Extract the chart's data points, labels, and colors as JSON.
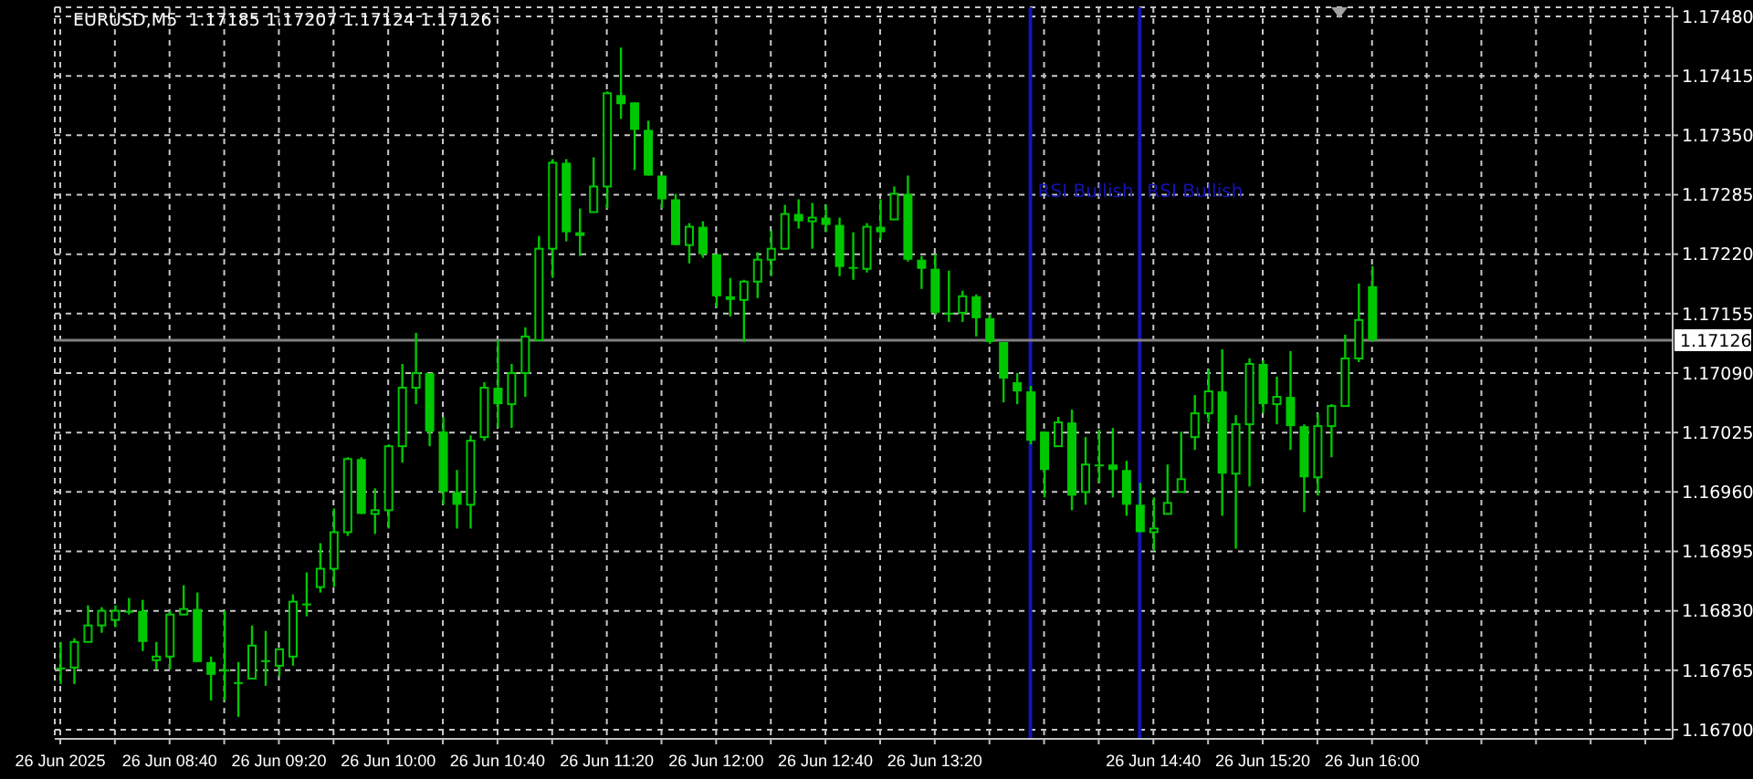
{
  "chart_data": {
    "type": "candlestick",
    "title": "EURUSD,M5  1.17185 1.17207 1.17124 1.17126",
    "color": "#00c800",
    "grid": true,
    "x": [
      "2025-06-26T08:00",
      "2025-06-26T08:05",
      "2025-06-26T08:10",
      "2025-06-26T08:15",
      "2025-06-26T08:20",
      "2025-06-26T08:25",
      "2025-06-26T08:30",
      "2025-06-26T08:35",
      "2025-06-26T08:40",
      "2025-06-26T08:45",
      "2025-06-26T08:50",
      "2025-06-26T08:55",
      "2025-06-26T09:00",
      "2025-06-26T09:05",
      "2025-06-26T09:10",
      "2025-06-26T09:15",
      "2025-06-26T09:20",
      "2025-06-26T09:25",
      "2025-06-26T09:30",
      "2025-06-26T09:35",
      "2025-06-26T09:40",
      "2025-06-26T09:45",
      "2025-06-26T09:50",
      "2025-06-26T09:55",
      "2025-06-26T10:00",
      "2025-06-26T10:05",
      "2025-06-26T10:10",
      "2025-06-26T10:15",
      "2025-06-26T10:20",
      "2025-06-26T10:25",
      "2025-06-26T10:30",
      "2025-06-26T10:35",
      "2025-06-26T10:40",
      "2025-06-26T10:45",
      "2025-06-26T10:50",
      "2025-06-26T10:55",
      "2025-06-26T11:00",
      "2025-06-26T11:05",
      "2025-06-26T11:10",
      "2025-06-26T11:15",
      "2025-06-26T11:20",
      "2025-06-26T11:25",
      "2025-06-26T11:30",
      "2025-06-26T11:35",
      "2025-06-26T11:40",
      "2025-06-26T11:45",
      "2025-06-26T11:50",
      "2025-06-26T11:55",
      "2025-06-26T12:00",
      "2025-06-26T12:05",
      "2025-06-26T12:10",
      "2025-06-26T12:15",
      "2025-06-26T12:20",
      "2025-06-26T12:25",
      "2025-06-26T12:30",
      "2025-06-26T12:35",
      "2025-06-26T12:40",
      "2025-06-26T12:45",
      "2025-06-26T12:50",
      "2025-06-26T12:55",
      "2025-06-26T13:00",
      "2025-06-26T13:05",
      "2025-06-26T13:10",
      "2025-06-26T13:15",
      "2025-06-26T13:20",
      "2025-06-26T13:25",
      "2025-06-26T13:30",
      "2025-06-26T13:35",
      "2025-06-26T13:40",
      "2025-06-26T13:45",
      "2025-06-26T13:50",
      "2025-06-26T13:55",
      "2025-06-26T14:00",
      "2025-06-26T14:05",
      "2025-06-26T14:10",
      "2025-06-26T14:15",
      "2025-06-26T14:20",
      "2025-06-26T14:25",
      "2025-06-26T14:30",
      "2025-06-26T14:35",
      "2025-06-26T14:40",
      "2025-06-26T14:45",
      "2025-06-26T14:50",
      "2025-06-26T14:55",
      "2025-06-26T15:00",
      "2025-06-26T15:05",
      "2025-06-26T15:10",
      "2025-06-26T15:15",
      "2025-06-26T15:20",
      "2025-06-26T15:25",
      "2025-06-26T15:30",
      "2025-06-26T15:35",
      "2025-06-26T15:40",
      "2025-06-26T15:45",
      "2025-06-26T15:50",
      "2025-06-26T15:55",
      "2025-06-26T16:00"
    ],
    "ohlc": [
      [
        1.16768,
        1.16796,
        1.1675,
        1.16768
      ],
      [
        1.16768,
        1.168,
        1.1675,
        1.16796
      ],
      [
        1.16796,
        1.16836,
        1.16796,
        1.16814
      ],
      [
        1.16814,
        1.16834,
        1.16806,
        1.1683
      ],
      [
        1.1682,
        1.16836,
        1.16812,
        1.1683
      ],
      [
        1.1683,
        1.16844,
        1.16826,
        1.1683
      ],
      [
        1.1683,
        1.16842,
        1.16786,
        1.16796
      ],
      [
        1.16776,
        1.16796,
        1.16766,
        1.1678
      ],
      [
        1.1678,
        1.1683,
        1.16766,
        1.16826
      ],
      [
        1.16826,
        1.16858,
        1.16826,
        1.16832
      ],
      [
        1.16832,
        1.1685,
        1.16774,
        1.16774
      ],
      [
        1.16774,
        1.1678,
        1.16732,
        1.1676
      ],
      [
        1.16766,
        1.1683,
        1.16732,
        1.16766
      ],
      [
        1.16752,
        1.16774,
        1.16714,
        1.1675
      ],
      [
        1.16756,
        1.16814,
        1.16756,
        1.16792
      ],
      [
        1.16776,
        1.16808,
        1.16748,
        1.16776
      ],
      [
        1.1677,
        1.16788,
        1.16758,
        1.16788
      ],
      [
        1.1678,
        1.16848,
        1.1677,
        1.1684
      ],
      [
        1.16838,
        1.16872,
        1.16824,
        1.16838
      ],
      [
        1.16856,
        1.16904,
        1.1685,
        1.16876
      ],
      [
        1.16876,
        1.16942,
        1.16856,
        1.16916
      ],
      [
        1.16916,
        1.16998,
        1.16912,
        1.16996
      ],
      [
        1.16996,
        1.16998,
        1.16936,
        1.16936
      ],
      [
        1.16936,
        1.16964,
        1.16914,
        1.1694
      ],
      [
        1.1694,
        1.17012,
        1.1692,
        1.1701
      ],
      [
        1.1701,
        1.171,
        1.16992,
        1.17074
      ],
      [
        1.17074,
        1.17134,
        1.17056,
        1.1709
      ],
      [
        1.1709,
        1.1709,
        1.1701,
        1.17026
      ],
      [
        1.17026,
        1.17042,
        1.16946,
        1.1696
      ],
      [
        1.1696,
        1.16984,
        1.1692,
        1.16946
      ],
      [
        1.16946,
        1.17022,
        1.1692,
        1.17016
      ],
      [
        1.1702,
        1.1708,
        1.17016,
        1.17074
      ],
      [
        1.17074,
        1.17126,
        1.1703,
        1.17056
      ],
      [
        1.17056,
        1.171,
        1.1703,
        1.1709
      ],
      [
        1.1709,
        1.1714,
        1.17064,
        1.1713
      ],
      [
        1.17126,
        1.1724,
        1.17126,
        1.17226
      ],
      [
        1.17226,
        1.17324,
        1.17194,
        1.1732
      ],
      [
        1.1732,
        1.17324,
        1.17234,
        1.17244
      ],
      [
        1.17244,
        1.1727,
        1.17218,
        1.1724
      ],
      [
        1.17266,
        1.17326,
        1.17266,
        1.17294
      ],
      [
        1.17294,
        1.17398,
        1.1727,
        1.17396
      ],
      [
        1.17394,
        1.17446,
        1.17368,
        1.17384
      ],
      [
        1.17386,
        1.17386,
        1.17312,
        1.17356
      ],
      [
        1.17356,
        1.17366,
        1.17306,
        1.17306
      ],
      [
        1.17306,
        1.17306,
        1.1727,
        1.1728
      ],
      [
        1.1728,
        1.17286,
        1.1723,
        1.1723
      ],
      [
        1.1723,
        1.17254,
        1.1721,
        1.1725
      ],
      [
        1.1725,
        1.17256,
        1.17216,
        1.1722
      ],
      [
        1.1722,
        1.1722,
        1.17162,
        1.17174
      ],
      [
        1.17174,
        1.17194,
        1.17152,
        1.1717
      ],
      [
        1.1717,
        1.17192,
        1.17124,
        1.1719
      ],
      [
        1.1719,
        1.17222,
        1.17172,
        1.17214
      ],
      [
        1.17214,
        1.17246,
        1.17196,
        1.17226
      ],
      [
        1.17226,
        1.17274,
        1.17226,
        1.17264
      ],
      [
        1.17264,
        1.1728,
        1.17248,
        1.17256
      ],
      [
        1.17256,
        1.17276,
        1.17226,
        1.1726
      ],
      [
        1.1726,
        1.17274,
        1.17244,
        1.17252
      ],
      [
        1.17252,
        1.1726,
        1.17196,
        1.17206
      ],
      [
        1.17206,
        1.17244,
        1.17192,
        1.17204
      ],
      [
        1.17204,
        1.17254,
        1.172,
        1.1725
      ],
      [
        1.1725,
        1.1728,
        1.17236,
        1.17244
      ],
      [
        1.17258,
        1.17294,
        1.17258,
        1.17286
      ],
      [
        1.17286,
        1.17306,
        1.17212,
        1.17214
      ],
      [
        1.17214,
        1.17218,
        1.17182,
        1.17204
      ],
      [
        1.17204,
        1.1722,
        1.17154,
        1.17156
      ],
      [
        1.17156,
        1.17202,
        1.17146,
        1.17156
      ],
      [
        1.17156,
        1.1718,
        1.17146,
        1.17174
      ],
      [
        1.17174,
        1.17176,
        1.1713,
        1.1715
      ],
      [
        1.1715,
        1.17154,
        1.17122,
        1.17124
      ],
      [
        1.17124,
        1.17124,
        1.17058,
        1.17084
      ],
      [
        1.1708,
        1.1709,
        1.17056,
        1.1707
      ],
      [
        1.1707,
        1.17076,
        1.17012,
        1.17016
      ],
      [
        1.17026,
        1.17026,
        1.16954,
        1.16984
      ],
      [
        1.1701,
        1.17042,
        1.1701,
        1.17036
      ],
      [
        1.17036,
        1.1705,
        1.1694,
        1.16956
      ],
      [
        1.1696,
        1.1702,
        1.16946,
        1.1699
      ],
      [
        1.1699,
        1.17028,
        1.1697,
        1.1699
      ],
      [
        1.1699,
        1.1703,
        1.16954,
        1.16984
      ],
      [
        1.16984,
        1.16994,
        1.16934,
        1.16946
      ],
      [
        1.16946,
        1.1697,
        1.16916,
        1.16916
      ],
      [
        1.16916,
        1.16954,
        1.16896,
        1.1692
      ],
      [
        1.16936,
        1.1699,
        1.16936,
        1.16948
      ],
      [
        1.1696,
        1.17026,
        1.1696,
        1.16974
      ],
      [
        1.1702,
        1.17066,
        1.17006,
        1.17046
      ],
      [
        1.17046,
        1.17094,
        1.17036,
        1.1707
      ],
      [
        1.1707,
        1.17116,
        1.16934,
        1.1698
      ],
      [
        1.1698,
        1.17044,
        1.16898,
        1.17034
      ],
      [
        1.17034,
        1.17106,
        1.16966,
        1.171
      ],
      [
        1.171,
        1.17104,
        1.17046,
        1.17056
      ],
      [
        1.17056,
        1.17086,
        1.17034,
        1.17064
      ],
      [
        1.17064,
        1.17114,
        1.17006,
        1.17032
      ],
      [
        1.17032,
        1.17034,
        1.16938,
        1.16976
      ],
      [
        1.16976,
        1.17046,
        1.16956,
        1.17032
      ],
      [
        1.17032,
        1.17056,
        1.16998,
        1.17054
      ],
      [
        1.17054,
        1.17132,
        1.17054,
        1.17106
      ],
      [
        1.17106,
        1.17188,
        1.17102,
        1.17148
      ],
      [
        1.17185,
        1.17207,
        1.17124,
        1.17126
      ]
    ],
    "xlim": [
      "2025-06-26T07:58",
      "2025-06-26T17:50"
    ],
    "xticks": [
      {
        "value": "2025-06-26T08:00",
        "label": "26 Jun 2025"
      },
      {
        "value": "2025-06-26T08:20",
        "label": null
      },
      {
        "value": "2025-06-26T08:40",
        "label": "26 Jun 08:40"
      },
      {
        "value": "2025-06-26T09:00",
        "label": null
      },
      {
        "value": "2025-06-26T09:20",
        "label": "26 Jun 09:20"
      },
      {
        "value": "2025-06-26T09:40",
        "label": null
      },
      {
        "value": "2025-06-26T10:00",
        "label": "26 Jun 10:00"
      },
      {
        "value": "2025-06-26T10:20",
        "label": null
      },
      {
        "value": "2025-06-26T10:40",
        "label": "26 Jun 10:40"
      },
      {
        "value": "2025-06-26T11:00",
        "label": null
      },
      {
        "value": "2025-06-26T11:20",
        "label": "26 Jun 11:20"
      },
      {
        "value": "2025-06-26T11:40",
        "label": null
      },
      {
        "value": "2025-06-26T12:00",
        "label": "26 Jun 12:00"
      },
      {
        "value": "2025-06-26T12:20",
        "label": null
      },
      {
        "value": "2025-06-26T12:40",
        "label": "26 Jun 12:40"
      },
      {
        "value": "2025-06-26T13:00",
        "label": null
      },
      {
        "value": "2025-06-26T13:20",
        "label": "26 Jun 13:20"
      },
      {
        "value": "2025-06-26T13:40",
        "label": null
      },
      {
        "value": "2025-06-26T14:00",
        "label": null
      },
      {
        "value": "2025-06-26T14:20",
        "label": null
      },
      {
        "value": "2025-06-26T14:40",
        "label": "26 Jun 14:40"
      },
      {
        "value": "2025-06-26T15:00",
        "label": null
      },
      {
        "value": "2025-06-26T15:20",
        "label": "26 Jun 15:20"
      },
      {
        "value": "2025-06-26T15:40",
        "label": null
      },
      {
        "value": "2025-06-26T16:00",
        "label": "26 Jun 16:00"
      },
      {
        "value": "2025-06-26T16:20",
        "label": null
      },
      {
        "value": "2025-06-26T16:40",
        "label": null
      },
      {
        "value": "2025-06-26T17:00",
        "label": null
      },
      {
        "value": "2025-06-26T17:20",
        "label": null
      },
      {
        "value": "2025-06-26T17:40",
        "label": null
      }
    ],
    "ylim": [
      1.1669,
      1.1749
    ],
    "yticks": [
      {
        "value": 1.1748,
        "label": "1.17480"
      },
      {
        "value": 1.17415,
        "label": "1.17415"
      },
      {
        "value": 1.1735,
        "label": "1.17350"
      },
      {
        "value": 1.17285,
        "label": "1.17285"
      },
      {
        "value": 1.1722,
        "label": "1.17220"
      },
      {
        "value": 1.17155,
        "label": "1.17155"
      },
      {
        "value": 1.1709,
        "label": "1.17090"
      },
      {
        "value": 1.17025,
        "label": "1.17025"
      },
      {
        "value": 1.1696,
        "label": "1.16960"
      },
      {
        "value": 1.16895,
        "label": "1.16895"
      },
      {
        "value": 1.1683,
        "label": "1.16830"
      },
      {
        "value": 1.16765,
        "label": "1.16765"
      },
      {
        "value": 1.167,
        "label": "1.16700"
      }
    ],
    "ref_lines": [
      {
        "axis": "x",
        "value": "2025-06-26T13:55",
        "label": "RSI Bullish",
        "color": "#1414b4"
      },
      {
        "axis": "x",
        "value": "2025-06-26T14:35",
        "label": "RSI Bullish",
        "color": "#1414b4"
      },
      {
        "axis": "y",
        "value": 1.17126,
        "label": "1.17126",
        "color": "#808080"
      }
    ]
  }
}
